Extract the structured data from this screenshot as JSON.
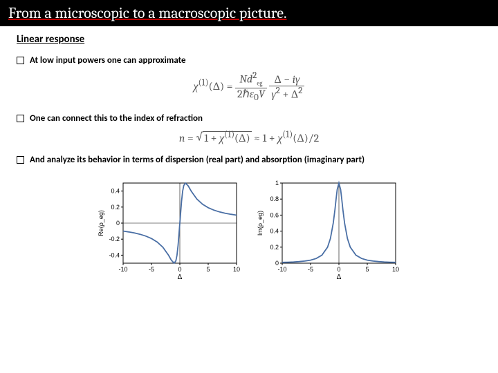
{
  "title": "From a microscopic to a macroscopic picture.",
  "section": "Linear response",
  "bullets": {
    "b1": "At low input powers one can approximate",
    "b2": "One can connect this to the index of refraction",
    "b3": "And analyze its behavior in terms of dispersion (real part) and absorption (imaginary part)"
  },
  "formula1_display": "χ⁽¹⁾(Δ) = (N d²_eg / 2ℏε₀V) · (Δ − iγ)/(γ² + Δ²)",
  "formula2_display": "n = √(1 + χ⁽¹⁾(Δ)) ≈ 1 + χ⁽¹⁾(Δ)/2",
  "chart_left": {
    "type": "line",
    "xlabel": "Δ",
    "ylabel": "Re(ρ_eg)",
    "xlim": [
      -10,
      10
    ],
    "ylim": [
      -0.5,
      0.5
    ],
    "xticks": [
      -10,
      -5,
      0,
      5,
      10
    ],
    "yticks": [
      -0.4,
      -0.2,
      0,
      0.2,
      0.4
    ],
    "curve_color": "#4a6fa5",
    "background_color": "#ffffff",
    "border_color": "#000000",
    "x_values": [
      -10,
      -9,
      -8,
      -7,
      -6,
      -5,
      -4,
      -3,
      -2,
      -1.5,
      -1,
      -0.7,
      -0.5,
      -0.3,
      0,
      0.3,
      0.5,
      0.7,
      1,
      1.5,
      2,
      3,
      4,
      5,
      6,
      7,
      8,
      9,
      10
    ],
    "y_values": [
      -0.099,
      -0.11,
      -0.123,
      -0.14,
      -0.162,
      -0.192,
      -0.235,
      -0.3,
      -0.4,
      -0.462,
      -0.5,
      -0.47,
      -0.4,
      -0.275,
      0.0,
      0.275,
      0.4,
      0.47,
      0.5,
      0.462,
      0.4,
      0.3,
      0.235,
      0.192,
      0.162,
      0.14,
      0.123,
      0.11,
      0.099
    ]
  },
  "chart_right": {
    "type": "line",
    "xlabel": "Δ",
    "ylabel": "Im(ρ_eg)",
    "xlim": [
      -10,
      10
    ],
    "ylim": [
      0,
      1.0
    ],
    "xticks": [
      -10,
      -5,
      0,
      5,
      10
    ],
    "yticks": [
      0,
      0.2,
      0.4,
      0.6,
      0.8,
      1.0
    ],
    "curve_color": "#4a6fa5",
    "background_color": "#ffffff",
    "border_color": "#000000",
    "x_values": [
      -10,
      -9,
      -8,
      -7,
      -6,
      -5,
      -4,
      -3,
      -2,
      -1.5,
      -1,
      -0.7,
      -0.5,
      -0.3,
      0,
      0.3,
      0.5,
      0.7,
      1,
      1.5,
      2,
      3,
      4,
      5,
      6,
      7,
      8,
      9,
      10
    ],
    "y_values": [
      0.01,
      0.012,
      0.015,
      0.02,
      0.027,
      0.038,
      0.059,
      0.1,
      0.2,
      0.308,
      0.5,
      0.671,
      0.8,
      0.917,
      1.0,
      0.917,
      0.8,
      0.671,
      0.5,
      0.308,
      0.2,
      0.1,
      0.059,
      0.038,
      0.027,
      0.02,
      0.015,
      0.012,
      0.01
    ]
  }
}
